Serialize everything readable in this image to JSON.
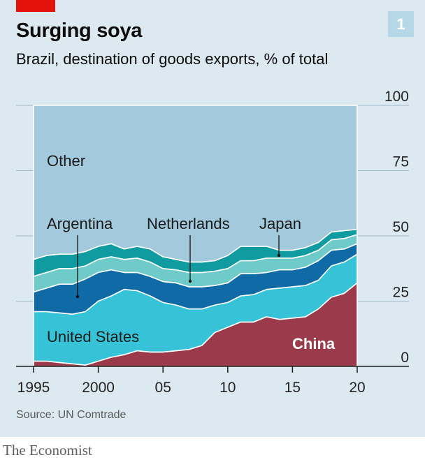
{
  "header": {
    "title": "Surging soya",
    "subtitle": "Brazil, destination of goods exports, % of total",
    "chart_number": "1"
  },
  "footer": {
    "source": "Source: UN Comtrade",
    "brand": "The Economist"
  },
  "colors": {
    "panel": "#dde9f0",
    "accent": "#e3120b",
    "China": "#9a3a4b",
    "United States": "#36c3d8",
    "Argentina": "#0f6aa6",
    "Netherlands": "#6fcbc9",
    "Japan": "#0f9b9f",
    "Other": "#a3c9dc"
  },
  "chart_data": {
    "type": "area",
    "stacked": true,
    "x": [
      1995,
      1996,
      1997,
      1998,
      1999,
      2000,
      2001,
      2002,
      2003,
      2004,
      2005,
      2006,
      2007,
      2008,
      2009,
      2010,
      2011,
      2012,
      2013,
      2014,
      2015,
      2016,
      2017,
      2018,
      2019,
      2020
    ],
    "x_tick_values": [
      1995,
      2000,
      2005,
      2010,
      2015,
      2020
    ],
    "x_tick_labels": [
      "1995",
      "2000",
      "05",
      "10",
      "15",
      "20"
    ],
    "y_ticks": [
      0,
      25,
      50,
      75,
      100
    ],
    "ylim": [
      0,
      100
    ],
    "y_axis_side": "right",
    "grid": true,
    "series": [
      {
        "name": "China",
        "values": [
          2,
          2,
          1.5,
          1,
          0.5,
          2,
          3.5,
          4.5,
          6,
          5.5,
          5.5,
          6,
          6.5,
          8,
          13,
          15,
          17,
          17,
          19,
          18,
          18.5,
          19,
          22,
          26.5,
          28,
          32
        ]
      },
      {
        "name": "United States",
        "values": [
          19,
          19,
          19,
          19,
          20.5,
          23,
          23.5,
          25,
          23,
          21.5,
          19,
          17.5,
          15.5,
          14,
          10.5,
          9.5,
          10,
          10.5,
          10.5,
          12,
          12,
          12,
          11,
          12,
          12,
          11
        ]
      },
      {
        "name": "Argentina",
        "values": [
          7.5,
          9,
          11,
          11.5,
          12.5,
          11,
          10,
          6.5,
          7,
          7.5,
          8,
          8.5,
          8.5,
          8.5,
          7.5,
          7.5,
          8.5,
          8,
          6.5,
          7,
          6.5,
          7,
          7.5,
          6,
          5,
          4
        ]
      },
      {
        "name": "Netherlands",
        "values": [
          6,
          6,
          6,
          6,
          5,
          5,
          5,
          5,
          5.5,
          5.5,
          5,
          5,
          5.5,
          5.5,
          5.5,
          5.5,
          5,
          5,
          5.5,
          4.5,
          4.5,
          4.5,
          4,
          4,
          4,
          3.5
        ]
      },
      {
        "name": "Japan",
        "values": [
          6.5,
          6.5,
          5.5,
          5.5,
          5.5,
          5,
          5,
          4,
          4.5,
          5,
          4.5,
          4,
          4,
          4,
          4,
          5,
          5.5,
          5.5,
          4.5,
          3,
          3,
          3,
          3,
          3,
          3,
          2
        ]
      },
      {
        "name": "Other",
        "values": [
          59,
          57.5,
          57,
          57,
          56,
          54,
          53,
          55,
          54,
          55,
          58,
          59,
          60,
          60,
          59.5,
          57.5,
          54,
          54,
          54,
          55.5,
          55.5,
          54.5,
          52.5,
          48.5,
          48,
          47.5
        ]
      }
    ],
    "labels": {
      "other": "Other",
      "argentina": "Argentina",
      "netherlands": "Netherlands",
      "japan": "Japan",
      "united_states": "United States",
      "china": "China"
    }
  }
}
